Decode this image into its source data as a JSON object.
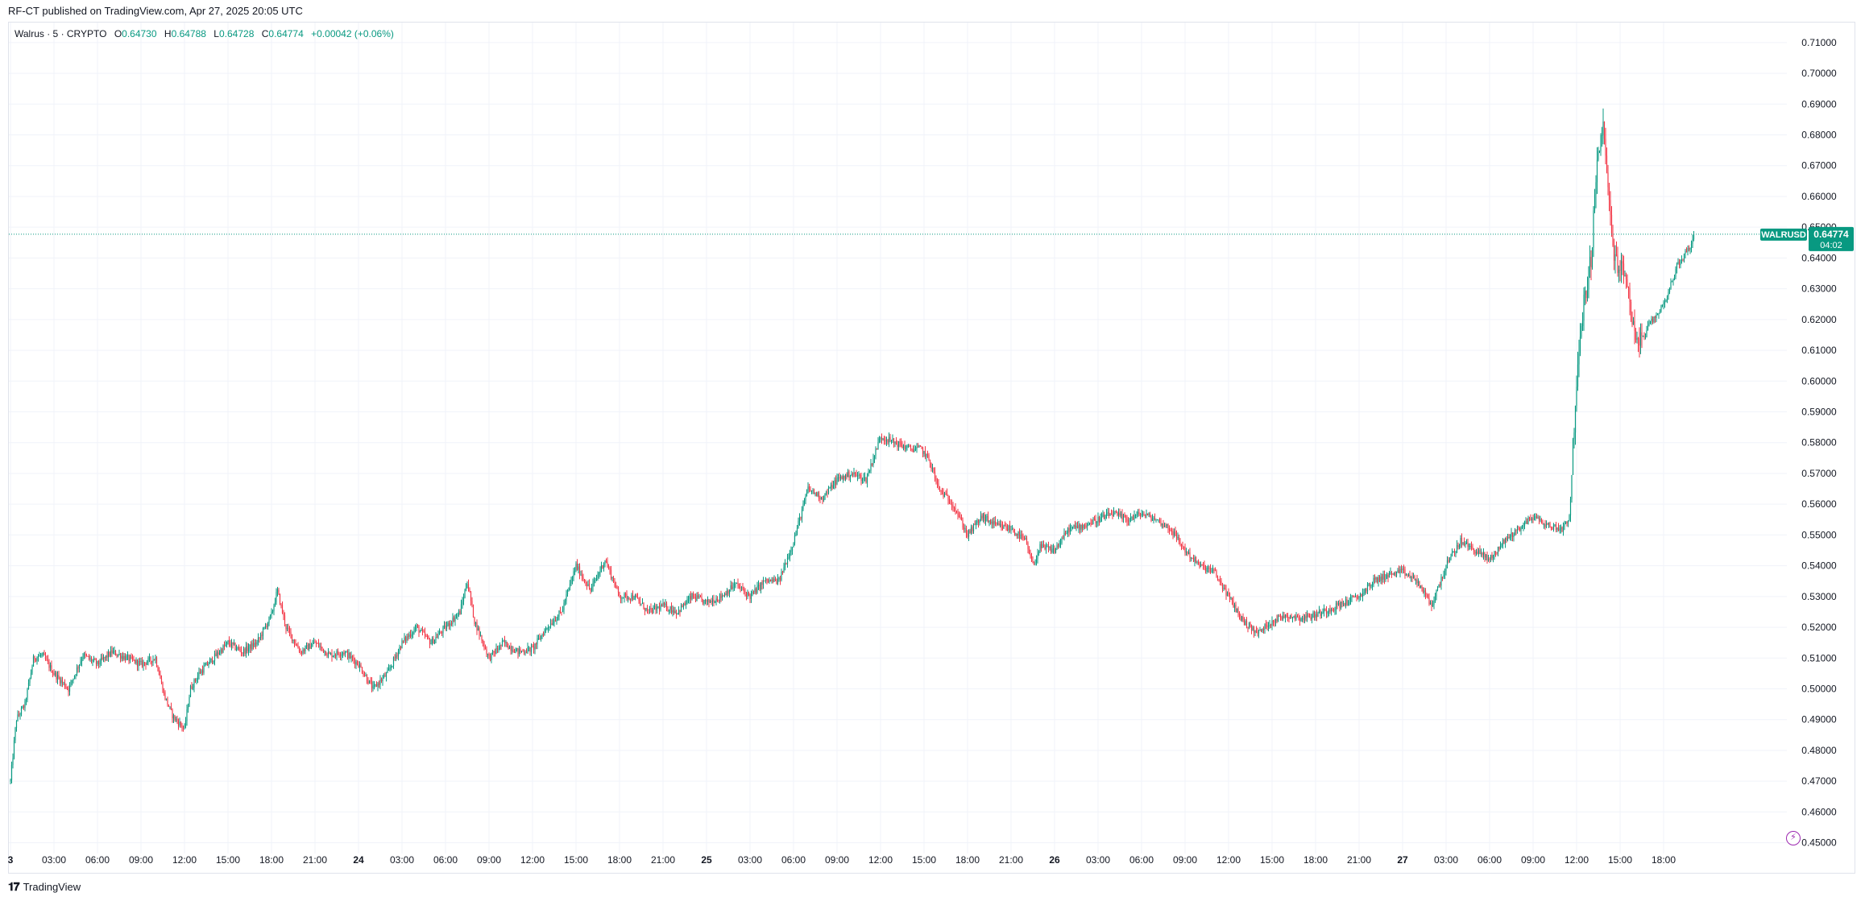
{
  "header": {
    "published_text": "RF-CT published on TradingView.com, Apr 27, 2025 20:05 UTC"
  },
  "legend": {
    "symbol_text": "Walrus · 5 · CRYPTO",
    "open_label": "O",
    "open_value": "0.64730",
    "high_label": "H",
    "high_value": "0.64788",
    "low_label": "L",
    "low_value": "0.64728",
    "close_label": "C",
    "close_value": "0.64774",
    "change_text": "+0.00042 (+0.06%)"
  },
  "price_tag": {
    "symbol": "WALRUSD",
    "price": "0.64774",
    "countdown": "04:02"
  },
  "footer": {
    "logo_text": "TradingView"
  },
  "colors": {
    "up": "#089981",
    "down": "#f23645",
    "grid": "#f0f3fa",
    "axis_text": "#131722",
    "price_line": "#089981"
  },
  "icons": {
    "bolt": "lightning-bolt-icon",
    "logo": "tradingview-logo-icon"
  },
  "chart_data": {
    "type": "candlestick",
    "symbol": "WALRUSD",
    "timeframe": "5",
    "y_ticks": [
      "0.45000",
      "0.46000",
      "0.47000",
      "0.48000",
      "0.49000",
      "0.50000",
      "0.51000",
      "0.52000",
      "0.53000",
      "0.54000",
      "0.55000",
      "0.56000",
      "0.57000",
      "0.58000",
      "0.59000",
      "0.60000",
      "0.61000",
      "0.62000",
      "0.63000",
      "0.64000",
      "0.65000",
      "0.66000",
      "0.67000",
      "0.68000",
      "0.69000",
      "0.70000",
      "0.71000"
    ],
    "ylim": [
      0.4465,
      0.7165
    ],
    "x_ticks": [
      {
        "label": "3",
        "t": 0,
        "bold": true
      },
      {
        "label": "03:00",
        "t": 3
      },
      {
        "label": "06:00",
        "t": 6
      },
      {
        "label": "09:00",
        "t": 9
      },
      {
        "label": "12:00",
        "t": 12
      },
      {
        "label": "15:00",
        "t": 15
      },
      {
        "label": "18:00",
        "t": 18
      },
      {
        "label": "21:00",
        "t": 21
      },
      {
        "label": "24",
        "t": 24,
        "bold": true
      },
      {
        "label": "03:00",
        "t": 27
      },
      {
        "label": "06:00",
        "t": 30
      },
      {
        "label": "09:00",
        "t": 33
      },
      {
        "label": "12:00",
        "t": 36
      },
      {
        "label": "15:00",
        "t": 39
      },
      {
        "label": "18:00",
        "t": 42
      },
      {
        "label": "21:00",
        "t": 45
      },
      {
        "label": "25",
        "t": 48,
        "bold": true
      },
      {
        "label": "03:00",
        "t": 51
      },
      {
        "label": "06:00",
        "t": 54
      },
      {
        "label": "09:00",
        "t": 57
      },
      {
        "label": "12:00",
        "t": 60
      },
      {
        "label": "15:00",
        "t": 63
      },
      {
        "label": "18:00",
        "t": 66
      },
      {
        "label": "21:00",
        "t": 69
      },
      {
        "label": "26",
        "t": 72,
        "bold": true
      },
      {
        "label": "03:00",
        "t": 75
      },
      {
        "label": "06:00",
        "t": 78
      },
      {
        "label": "09:00",
        "t": 81
      },
      {
        "label": "12:00",
        "t": 84
      },
      {
        "label": "15:00",
        "t": 87
      },
      {
        "label": "18:00",
        "t": 90
      },
      {
        "label": "21:00",
        "t": 93
      },
      {
        "label": "27",
        "t": 96,
        "bold": true
      },
      {
        "label": "03:00",
        "t": 99
      },
      {
        "label": "06:00",
        "t": 102
      },
      {
        "label": "09:00",
        "t": 105
      },
      {
        "label": "12:00",
        "t": 108
      },
      {
        "label": "15:00",
        "t": 111
      },
      {
        "label": "18:00",
        "t": 114
      }
    ],
    "x_range_hours": [
      0,
      116.1
    ],
    "price_path": [
      [
        0,
        0.47
      ],
      [
        0.4,
        0.49
      ],
      [
        1.0,
        0.495
      ],
      [
        1.6,
        0.51
      ],
      [
        2.2,
        0.511
      ],
      [
        3.0,
        0.505
      ],
      [
        4.0,
        0.5
      ],
      [
        5.0,
        0.511
      ],
      [
        6.0,
        0.508
      ],
      [
        7.0,
        0.512
      ],
      [
        8.0,
        0.51
      ],
      [
        9.0,
        0.508
      ],
      [
        10.0,
        0.51
      ],
      [
        10.6,
        0.498
      ],
      [
        11.2,
        0.491
      ],
      [
        12.0,
        0.487
      ],
      [
        12.4,
        0.5
      ],
      [
        13.0,
        0.505
      ],
      [
        14.0,
        0.51
      ],
      [
        15.0,
        0.515
      ],
      [
        16.0,
        0.512
      ],
      [
        17.0,
        0.515
      ],
      [
        18.0,
        0.524
      ],
      [
        18.4,
        0.532
      ],
      [
        19.0,
        0.52
      ],
      [
        20.0,
        0.512
      ],
      [
        21.0,
        0.515
      ],
      [
        22.0,
        0.511
      ],
      [
        23.0,
        0.512
      ],
      [
        24.0,
        0.508
      ],
      [
        25.0,
        0.5
      ],
      [
        26.0,
        0.505
      ],
      [
        27.0,
        0.515
      ],
      [
        28.0,
        0.52
      ],
      [
        29.0,
        0.515
      ],
      [
        30.0,
        0.52
      ],
      [
        31.0,
        0.525
      ],
      [
        31.5,
        0.535
      ],
      [
        32.0,
        0.522
      ],
      [
        33.0,
        0.51
      ],
      [
        34.0,
        0.515
      ],
      [
        35.0,
        0.512
      ],
      [
        36.0,
        0.513
      ],
      [
        37.0,
        0.52
      ],
      [
        38.0,
        0.525
      ],
      [
        39.0,
        0.54
      ],
      [
        40.0,
        0.532
      ],
      [
        41.0,
        0.542
      ],
      [
        42.0,
        0.53
      ],
      [
        43.0,
        0.53
      ],
      [
        44.0,
        0.525
      ],
      [
        45.0,
        0.527
      ],
      [
        46.0,
        0.525
      ],
      [
        47.0,
        0.53
      ],
      [
        48.0,
        0.528
      ],
      [
        49.0,
        0.53
      ],
      [
        50.0,
        0.534
      ],
      [
        51.0,
        0.53
      ],
      [
        52.0,
        0.535
      ],
      [
        53.0,
        0.535
      ],
      [
        54.0,
        0.548
      ],
      [
        55.0,
        0.565
      ],
      [
        56.0,
        0.562
      ],
      [
        57.0,
        0.568
      ],
      [
        58.0,
        0.57
      ],
      [
        59.0,
        0.568
      ],
      [
        60.0,
        0.582
      ],
      [
        61.0,
        0.58
      ],
      [
        62.0,
        0.578
      ],
      [
        62.8,
        0.578
      ],
      [
        63.4,
        0.574
      ],
      [
        64.0,
        0.565
      ],
      [
        65.0,
        0.56
      ],
      [
        66.0,
        0.55
      ],
      [
        67.0,
        0.556
      ],
      [
        68.0,
        0.553
      ],
      [
        69.0,
        0.552
      ],
      [
        70.0,
        0.548
      ],
      [
        70.5,
        0.54
      ],
      [
        71.0,
        0.546
      ],
      [
        72.0,
        0.545
      ],
      [
        73.0,
        0.552
      ],
      [
        74.0,
        0.553
      ],
      [
        75.0,
        0.555
      ],
      [
        76.0,
        0.557
      ],
      [
        77.0,
        0.555
      ],
      [
        78.0,
        0.557
      ],
      [
        79.0,
        0.555
      ],
      [
        80.0,
        0.552
      ],
      [
        81.0,
        0.545
      ],
      [
        82.0,
        0.54
      ],
      [
        83.0,
        0.538
      ],
      [
        84.0,
        0.53
      ],
      [
        85.0,
        0.522
      ],
      [
        86.0,
        0.518
      ],
      [
        87.0,
        0.522
      ],
      [
        88.0,
        0.524
      ],
      [
        89.0,
        0.523
      ],
      [
        90.0,
        0.524
      ],
      [
        91.0,
        0.526
      ],
      [
        92.0,
        0.528
      ],
      [
        93.0,
        0.53
      ],
      [
        94.0,
        0.535
      ],
      [
        95.0,
        0.537
      ],
      [
        96.0,
        0.538
      ],
      [
        97.0,
        0.535
      ],
      [
        98.0,
        0.527
      ],
      [
        99.0,
        0.54
      ],
      [
        100.0,
        0.548
      ],
      [
        101.0,
        0.545
      ],
      [
        102.0,
        0.542
      ],
      [
        103.0,
        0.548
      ],
      [
        104.0,
        0.552
      ],
      [
        105.0,
        0.556
      ],
      [
        106.0,
        0.553
      ],
      [
        107.0,
        0.552
      ],
      [
        107.5,
        0.556
      ],
      [
        108.0,
        0.6
      ],
      [
        108.5,
        0.625
      ],
      [
        109.0,
        0.64
      ],
      [
        109.4,
        0.67
      ],
      [
        109.8,
        0.684
      ],
      [
        110.2,
        0.66
      ],
      [
        110.6,
        0.64
      ],
      [
        111.0,
        0.637
      ],
      [
        111.5,
        0.632
      ],
      [
        112.0,
        0.615
      ],
      [
        112.5,
        0.613
      ],
      [
        113.0,
        0.618
      ],
      [
        114.0,
        0.625
      ],
      [
        115.0,
        0.638
      ],
      [
        116.0,
        0.645
      ],
      [
        116.1,
        0.6477
      ]
    ],
    "last_price": 0.64774,
    "legend": {
      "open": 0.6473,
      "high": 0.64788,
      "low": 0.64728,
      "close": 0.64774,
      "change": 0.00042,
      "change_pct": 0.06
    }
  }
}
